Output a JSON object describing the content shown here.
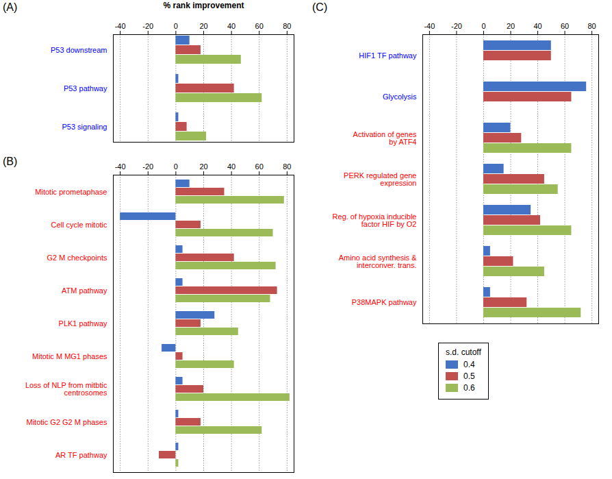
{
  "chart_data": [
    {
      "type": "bar",
      "orientation": "horizontal",
      "title": "(A)",
      "xlabel": "% rank improvement",
      "categories": [
        "P53 downstream",
        "P53 pathway",
        "P53 signaling"
      ],
      "label_colors": [
        "#0000FF",
        "#0000FF",
        "#0000FF"
      ],
      "series": [
        {
          "name": "0.4",
          "color": "#4472C4",
          "values": [
            10,
            2,
            2
          ]
        },
        {
          "name": "0.5",
          "color": "#C0504D",
          "values": [
            18,
            42,
            8
          ]
        },
        {
          "name": "0.6",
          "color": "#9BBB59",
          "values": [
            47,
            62,
            22
          ]
        }
      ],
      "xlim": [
        -45,
        85
      ],
      "xticks": [
        -40,
        -20,
        0,
        20,
        40,
        60,
        80
      ],
      "grid": true,
      "legend": "right",
      "legend_title": "s.d. cutoff"
    },
    {
      "type": "bar",
      "orientation": "horizontal",
      "title": "(B)",
      "categories": [
        "Mitotic prometaphase",
        "Cell cycle mitotic",
        "G2 M checkpoints",
        "ATM pathway",
        "PLK1 pathway",
        "Mitotic M MG1 phases",
        "Loss of NLP from mitbtic\ncentrosomes",
        "Mitotic G2 G2 M phases",
        "AR TF pathway"
      ],
      "label_colors": [
        "#FF0000",
        "#FF0000",
        "#FF0000",
        "#FF0000",
        "#FF0000",
        "#FF0000",
        "#FF0000",
        "#FF0000",
        "#FF0000"
      ],
      "series": [
        {
          "name": "0.4",
          "color": "#4472C4",
          "values": [
            10,
            -40,
            5,
            5,
            28,
            -10,
            5,
            2,
            2
          ]
        },
        {
          "name": "0.5",
          "color": "#C0504D",
          "values": [
            35,
            18,
            42,
            73,
            18,
            5,
            20,
            18,
            -12
          ]
        },
        {
          "name": "0.6",
          "color": "#9BBB59",
          "values": [
            78,
            70,
            72,
            68,
            45,
            42,
            82,
            62,
            2
          ]
        }
      ],
      "xlim": [
        -45,
        85
      ],
      "xticks": [
        -40,
        -20,
        0,
        20,
        40,
        60,
        80
      ],
      "grid": true
    },
    {
      "type": "bar",
      "orientation": "horizontal",
      "title": "(C)",
      "categories": [
        "HIF1 TF pathway",
        "Glycolysis",
        "Activation of genes\nby ATF4",
        "PERK regulated gene\nexpression",
        "Reg. of hypoxia inducible\nfactor HIF by O2",
        "Amino acid synthesis &\ninterconver. trans.",
        "P38MAPK pathway"
      ],
      "label_colors": [
        "#0000FF",
        "#0000FF",
        "#FF0000",
        "#FF0000",
        "#FF0000",
        "#FF0000",
        "#FF0000"
      ],
      "series": [
        {
          "name": "0.4",
          "color": "#4472C4",
          "values": [
            50,
            76,
            20,
            15,
            35,
            5,
            5
          ]
        },
        {
          "name": "0.5",
          "color": "#C0504D",
          "values": [
            50,
            65,
            28,
            45,
            42,
            22,
            32
          ]
        },
        {
          "name": "0.6",
          "color": "#9BBB59",
          "values": [
            0,
            0,
            65,
            55,
            65,
            45,
            72
          ]
        }
      ],
      "xlim": [
        -45,
        85
      ],
      "xticks": [
        -40,
        -20,
        0,
        20,
        40,
        60,
        80
      ],
      "grid": true
    }
  ]
}
